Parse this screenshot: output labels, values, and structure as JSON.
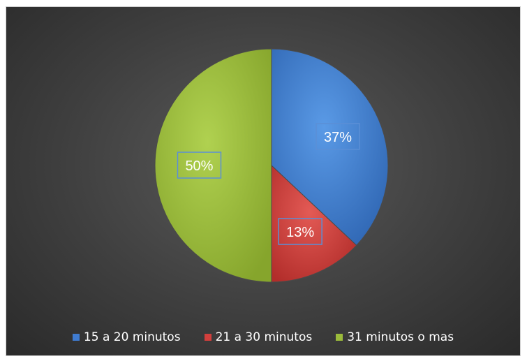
{
  "chart_data": {
    "type": "pie",
    "categories": [
      "15 a 20 minutos",
      "21 a 30 minutos",
      "31 minutos o mas"
    ],
    "values": [
      37,
      13,
      50
    ],
    "data_labels": [
      "37%",
      "13%",
      "50%"
    ],
    "colors": [
      "#3f7bd0",
      "#d23f3c",
      "#9bbb3b"
    ],
    "start_angle_deg": 0,
    "direction": "clockwise",
    "legend_position": "bottom",
    "background": "#404040"
  }
}
